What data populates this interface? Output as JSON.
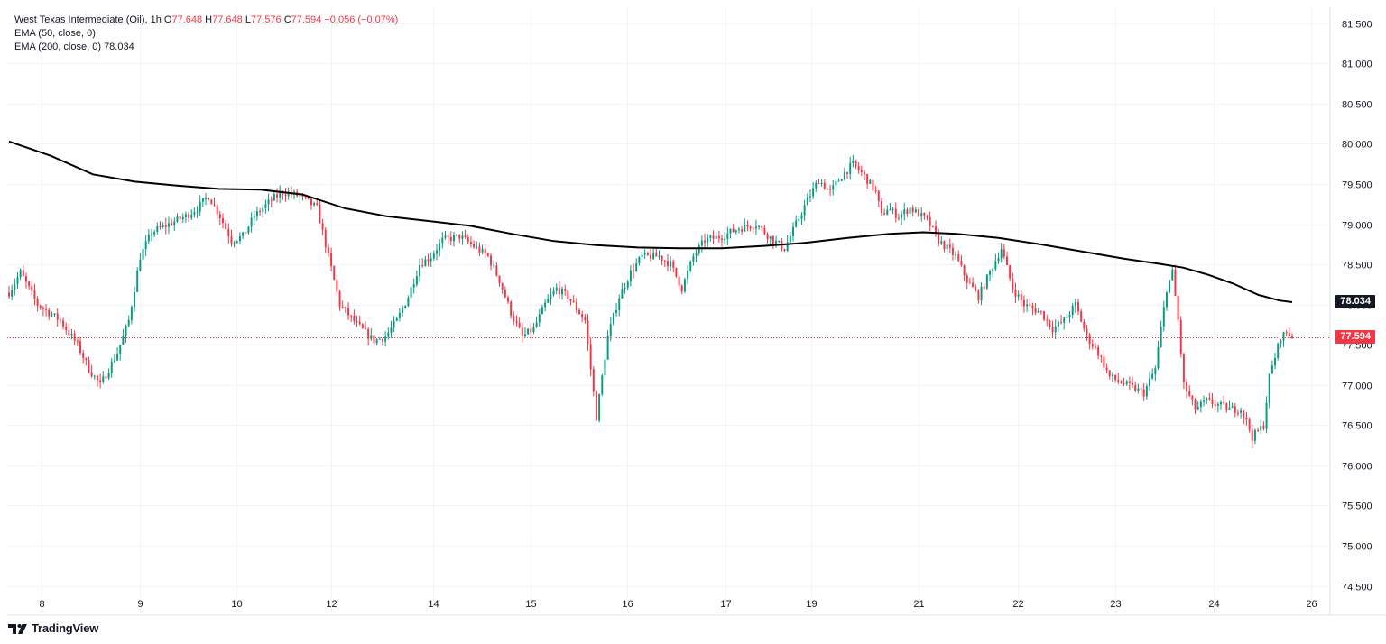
{
  "legend": {
    "symbol": "West Texas Intermediate (Oil), 1h",
    "o_label": "O",
    "o_value": "77.648",
    "h_label": "H",
    "h_value": "77.648",
    "l_label": "L",
    "l_value": "77.576",
    "c_label": "C",
    "c_value": "77.594",
    "change": "−0.056 (−0.07%)",
    "ema50": "EMA (50, close, 0)",
    "ema200": "EMA (200, close, 0)",
    "ema200_value": "78.034"
  },
  "brand": {
    "name": "TradingView"
  },
  "colors": {
    "up": "#089981",
    "down": "#f23645",
    "ema": "#000000",
    "grid": "#f0f3fa",
    "last": "#f23645"
  },
  "price_labels": {
    "ema200": "78.034",
    "last": "77.594"
  },
  "chart_data": {
    "type": "candlestick",
    "title": "West Texas Intermediate (Oil), 1h",
    "ylim": [
      74.45,
      81.7
    ],
    "y_ticks": [
      "74.500",
      "75.000",
      "75.500",
      "76.000",
      "76.500",
      "77.000",
      "77.500",
      "78.000",
      "78.500",
      "79.000",
      "79.500",
      "80.000",
      "80.500",
      "81.000",
      "81.500"
    ],
    "x_ticks": [
      "8",
      "9",
      "10",
      "12",
      "14",
      "15",
      "16",
      "17",
      "19",
      "21",
      "22",
      "23",
      "24",
      "26"
    ],
    "close_path": [
      [
        0,
        78.15
      ],
      [
        4,
        78.4
      ],
      [
        10,
        78.0
      ],
      [
        18,
        77.8
      ],
      [
        24,
        77.5
      ],
      [
        28,
        77.2
      ],
      [
        32,
        77.0
      ],
      [
        38,
        77.4
      ],
      [
        42,
        77.8
      ],
      [
        46,
        78.6
      ],
      [
        50,
        78.9
      ],
      [
        56,
        79.0
      ],
      [
        62,
        79.1
      ],
      [
        66,
        79.2
      ],
      [
        70,
        79.35
      ],
      [
        74,
        79.1
      ],
      [
        78,
        78.8
      ],
      [
        82,
        78.85
      ],
      [
        86,
        79.1
      ],
      [
        92,
        79.3
      ],
      [
        96,
        79.4
      ],
      [
        102,
        79.35
      ],
      [
        108,
        79.2
      ],
      [
        112,
        78.6
      ],
      [
        116,
        78.0
      ],
      [
        122,
        77.75
      ],
      [
        128,
        77.55
      ],
      [
        132,
        77.6
      ],
      [
        136,
        77.8
      ],
      [
        140,
        78.1
      ],
      [
        144,
        78.5
      ],
      [
        148,
        78.6
      ],
      [
        152,
        78.8
      ],
      [
        158,
        78.85
      ],
      [
        162,
        78.75
      ],
      [
        168,
        78.6
      ],
      [
        172,
        78.3
      ],
      [
        176,
        77.9
      ],
      [
        180,
        77.6
      ],
      [
        184,
        77.7
      ],
      [
        188,
        78.0
      ],
      [
        192,
        78.2
      ],
      [
        196,
        78.1
      ],
      [
        202,
        77.8
      ],
      [
        204,
        77.2
      ],
      [
        206,
        76.6
      ],
      [
        210,
        77.6
      ],
      [
        214,
        78.1
      ],
      [
        218,
        78.4
      ],
      [
        222,
        78.6
      ],
      [
        228,
        78.6
      ],
      [
        232,
        78.5
      ],
      [
        236,
        78.2
      ],
      [
        240,
        78.6
      ],
      [
        244,
        78.8
      ],
      [
        250,
        78.85
      ],
      [
        256,
        78.95
      ],
      [
        262,
        79.0
      ],
      [
        268,
        78.8
      ],
      [
        272,
        78.7
      ],
      [
        276,
        79.0
      ],
      [
        280,
        79.3
      ],
      [
        284,
        79.55
      ],
      [
        288,
        79.4
      ],
      [
        292,
        79.6
      ],
      [
        296,
        79.75
      ],
      [
        300,
        79.6
      ],
      [
        304,
        79.4
      ],
      [
        306,
        79.1
      ],
      [
        308,
        79.2
      ],
      [
        312,
        79.1
      ],
      [
        316,
        79.2
      ],
      [
        322,
        79.05
      ],
      [
        326,
        78.8
      ],
      [
        332,
        78.6
      ],
      [
        336,
        78.3
      ],
      [
        340,
        78.1
      ],
      [
        344,
        78.4
      ],
      [
        348,
        78.7
      ],
      [
        352,
        78.2
      ],
      [
        356,
        78.0
      ],
      [
        362,
        77.9
      ],
      [
        366,
        77.7
      ],
      [
        370,
        77.8
      ],
      [
        374,
        78.0
      ],
      [
        378,
        77.6
      ],
      [
        382,
        77.4
      ],
      [
        386,
        77.1
      ],
      [
        392,
        77.0
      ],
      [
        398,
        76.9
      ],
      [
        402,
        77.2
      ],
      [
        406,
        78.2
      ],
      [
        408,
        78.4
      ],
      [
        410,
        77.8
      ],
      [
        412,
        77.0
      ],
      [
        416,
        76.7
      ],
      [
        420,
        76.8
      ],
      [
        424,
        76.75
      ],
      [
        428,
        76.7
      ],
      [
        432,
        76.7
      ],
      [
        434,
        76.55
      ],
      [
        436,
        76.35
      ],
      [
        440,
        76.5
      ],
      [
        442,
        77.1
      ],
      [
        446,
        77.6
      ],
      [
        448,
        77.65
      ],
      [
        450,
        77.6
      ]
    ],
    "n_candles": 451,
    "series": [
      {
        "name": "EMA (200, close, 0)",
        "points": [
          [
            0,
            80.03
          ],
          [
            10,
            79.85
          ],
          [
            20,
            79.62
          ],
          [
            30,
            79.53
          ],
          [
            40,
            79.48
          ],
          [
            50,
            79.44
          ],
          [
            60,
            79.43
          ],
          [
            70,
            79.37
          ],
          [
            80,
            79.2
          ],
          [
            90,
            79.1
          ],
          [
            100,
            79.04
          ],
          [
            110,
            78.98
          ],
          [
            120,
            78.88
          ],
          [
            130,
            78.79
          ],
          [
            140,
            78.74
          ],
          [
            150,
            78.71
          ],
          [
            160,
            78.7
          ],
          [
            170,
            78.7
          ],
          [
            180,
            78.73
          ],
          [
            190,
            78.77
          ],
          [
            200,
            78.83
          ],
          [
            210,
            78.88
          ],
          [
            218,
            78.9
          ],
          [
            226,
            78.88
          ],
          [
            236,
            78.83
          ],
          [
            246,
            78.75
          ],
          [
            256,
            78.66
          ],
          [
            266,
            78.57
          ],
          [
            274,
            78.51
          ],
          [
            280,
            78.46
          ],
          [
            286,
            78.37
          ],
          [
            292,
            78.26
          ],
          [
            298,
            78.12
          ],
          [
            303,
            78.05
          ],
          [
            306,
            78.03
          ]
        ],
        "x_scale": "candle_index_scaled",
        "last_value": 78.034
      }
    ]
  }
}
